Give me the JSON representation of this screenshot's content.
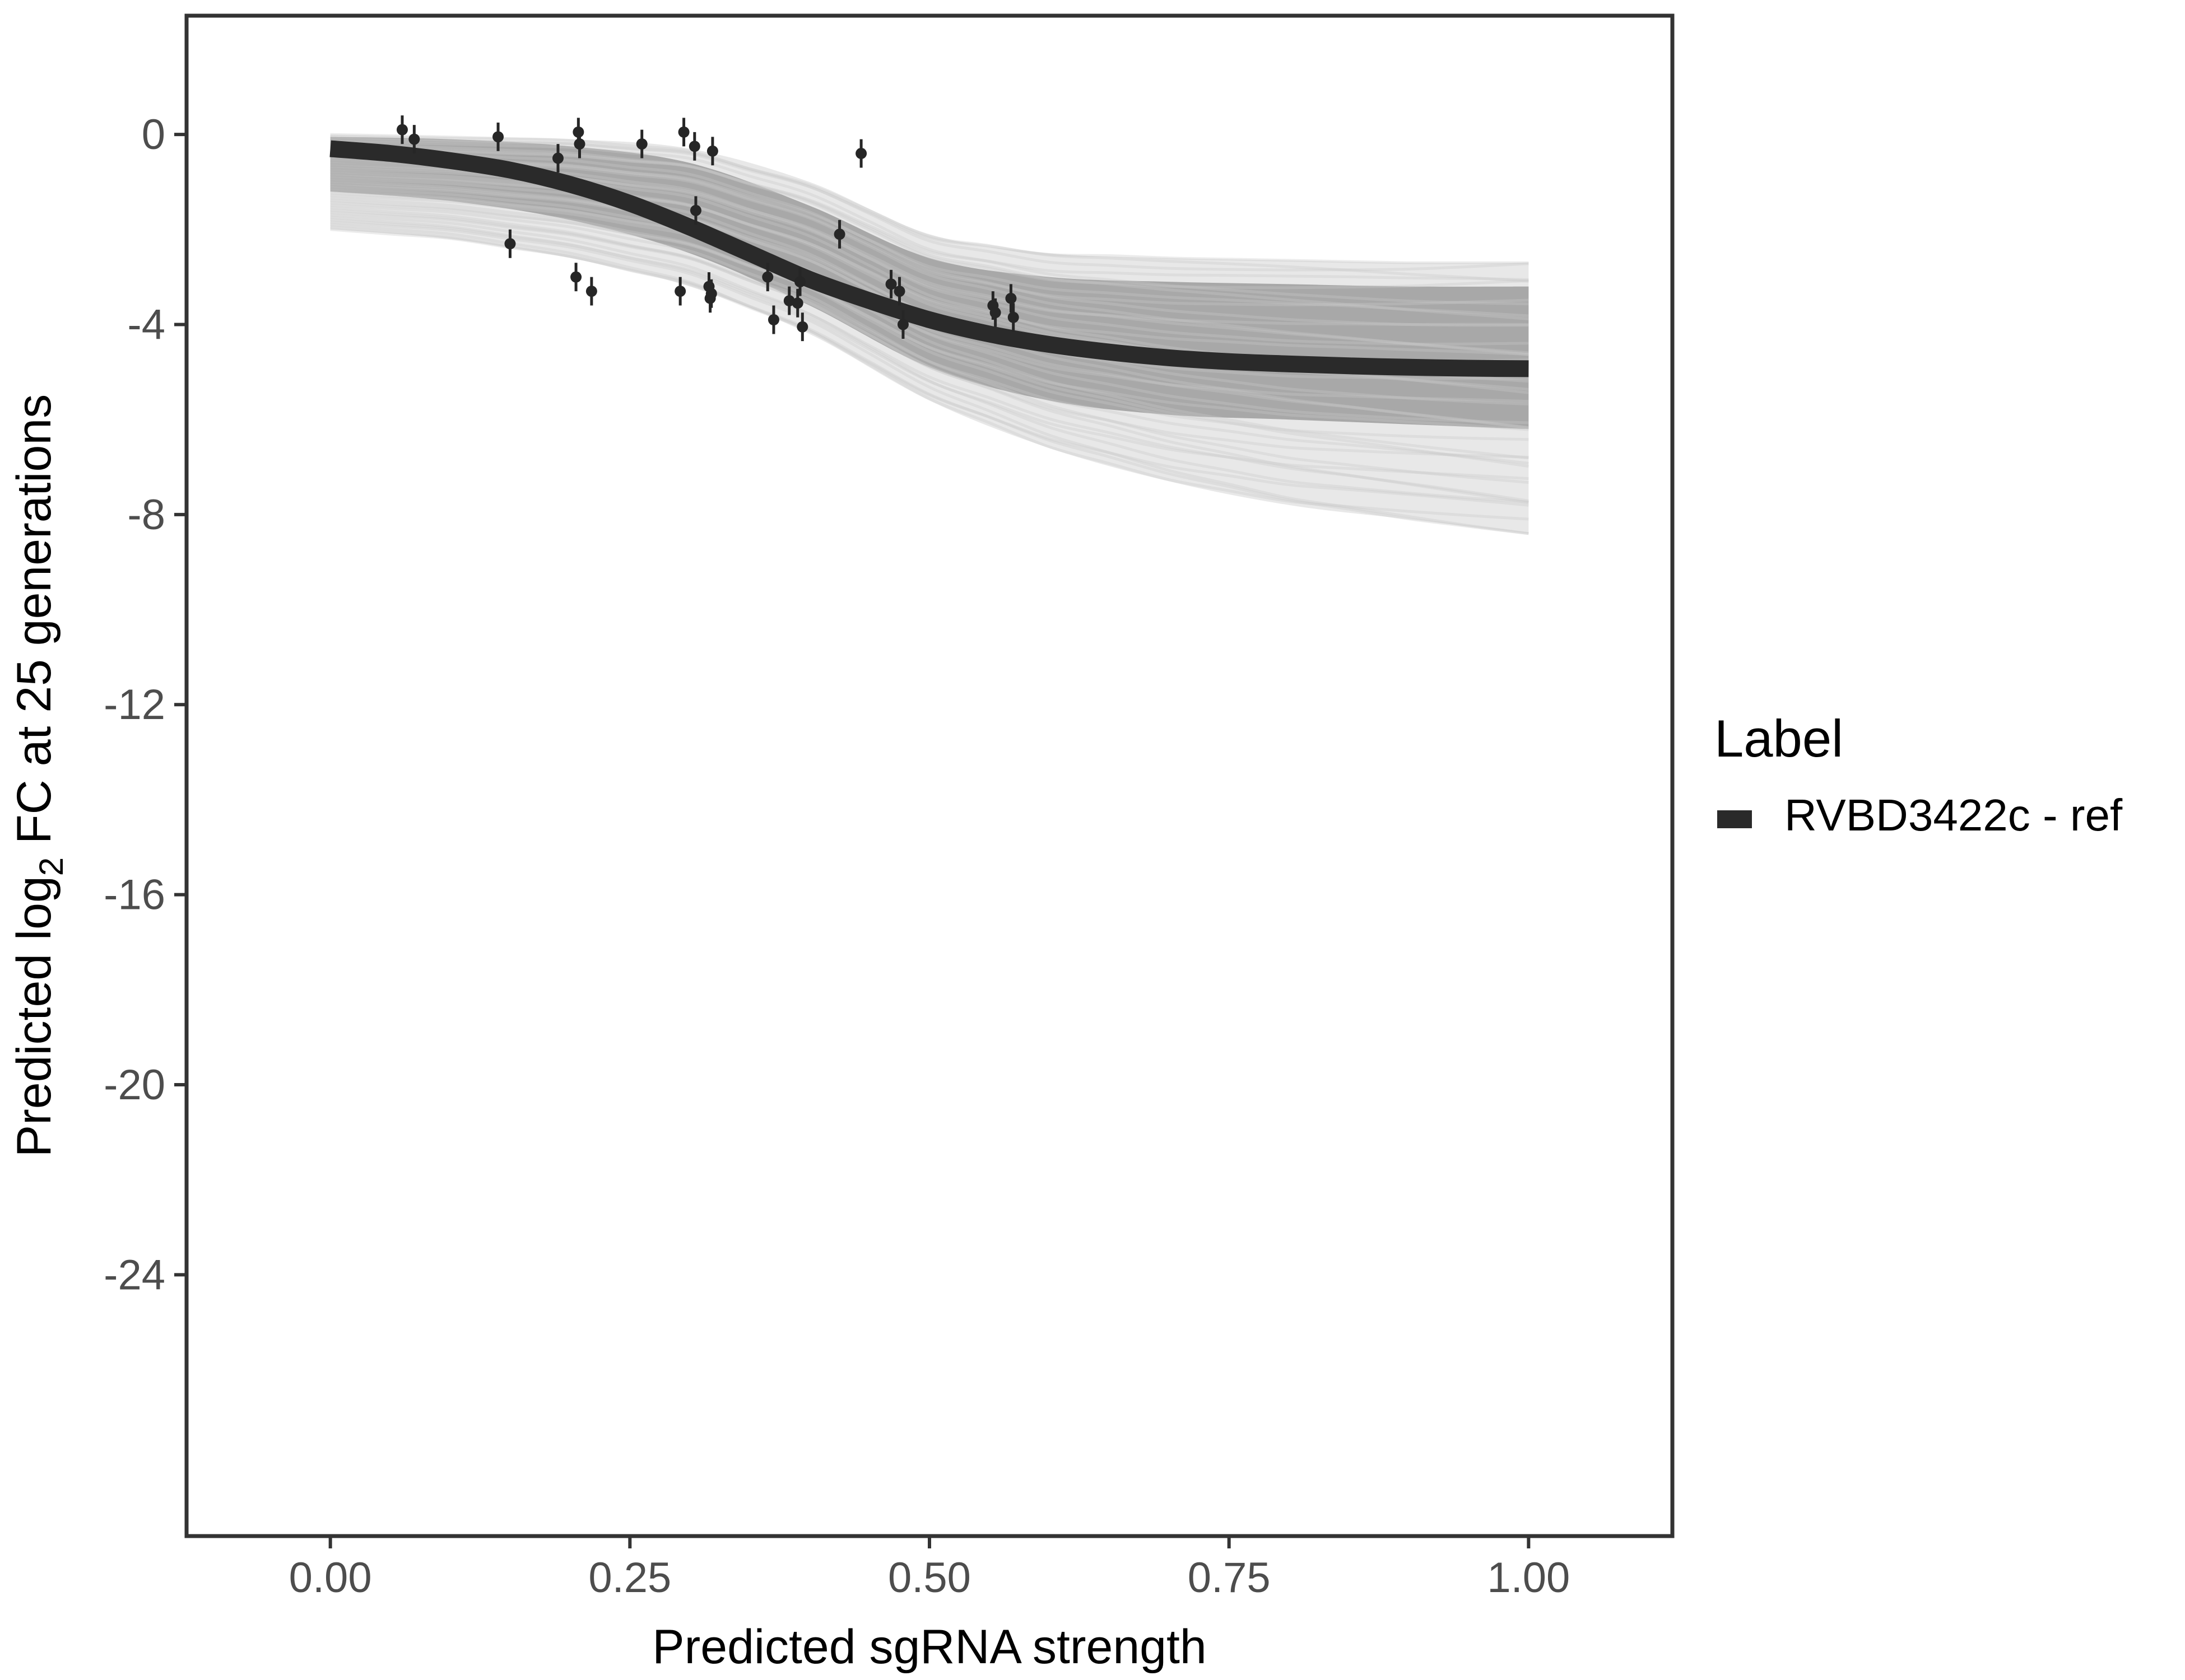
{
  "chart_data": {
    "type": "line",
    "xlabel": "Predicted sgRNA strength",
    "ylabel_prefix": "Predicted  log",
    "ylabel_subscript": "2",
    "ylabel_suffix": " FC at 25 generations",
    "xlim": [
      -0.12,
      1.12
    ],
    "ylim": [
      -29.5,
      2.5
    ],
    "x_ticks": [
      0.0,
      0.25,
      0.5,
      0.75,
      1.0
    ],
    "x_tick_labels": [
      "0.00",
      "0.25",
      "0.50",
      "0.75",
      "1.00"
    ],
    "y_ticks": [
      0,
      -4,
      -8,
      -12,
      -16,
      -20,
      -24
    ],
    "y_tick_labels": [
      "0",
      "-4",
      "-8",
      "-12",
      "-16",
      "-20",
      "-24"
    ],
    "grid": false,
    "legend": {
      "title": "Label",
      "position": "right",
      "entries": [
        "RVBD3422c - ref"
      ]
    },
    "colors": {
      "fit": "#2a2a2a",
      "band": "#a8a8a8",
      "draws": "#c8c8c8",
      "points": "#262626",
      "frame": "#333333"
    },
    "fit_curve": {
      "series_name": "RVBD3422c - ref",
      "x": [
        0.0,
        0.05,
        0.1,
        0.15,
        0.2,
        0.25,
        0.3,
        0.35,
        0.4,
        0.45,
        0.5,
        0.55,
        0.6,
        0.65,
        0.7,
        0.75,
        0.8,
        0.85,
        0.9,
        0.95,
        1.0
      ],
      "y": [
        -0.3,
        -0.4,
        -0.55,
        -0.75,
        -1.05,
        -1.45,
        -1.95,
        -2.5,
        -3.05,
        -3.5,
        -3.9,
        -4.2,
        -4.42,
        -4.58,
        -4.7,
        -4.78,
        -4.83,
        -4.87,
        -4.9,
        -4.92,
        -4.93
      ]
    },
    "posterior_band": {
      "x": [
        0.0,
        0.1,
        0.2,
        0.3,
        0.4,
        0.5,
        0.6,
        0.7,
        0.8,
        0.9,
        1.0
      ],
      "upper": [
        -0.05,
        -0.1,
        -0.25,
        -0.6,
        -1.5,
        -2.6,
        -3.0,
        -3.1,
        -3.15,
        -3.2,
        -3.2
      ],
      "lower": [
        -1.2,
        -1.4,
        -1.8,
        -2.5,
        -3.6,
        -4.9,
        -5.6,
        -5.9,
        -6.0,
        -6.1,
        -6.2
      ],
      "outer_upper": [
        0.0,
        -0.05,
        -0.1,
        -0.3,
        -1.0,
        -2.1,
        -2.5,
        -2.6,
        -2.65,
        -2.7,
        -2.7
      ],
      "outer_lower": [
        -2.0,
        -2.2,
        -2.6,
        -3.2,
        -4.2,
        -5.6,
        -6.6,
        -7.3,
        -7.8,
        -8.1,
        -8.4
      ]
    },
    "points": [
      {
        "x": 0.06,
        "y": 0.1,
        "err": 0.3
      },
      {
        "x": 0.07,
        "y": -0.1,
        "err": 0.3
      },
      {
        "x": 0.14,
        "y": -0.05,
        "err": 0.3
      },
      {
        "x": 0.15,
        "y": -2.3,
        "err": 0.3
      },
      {
        "x": 0.19,
        "y": -0.5,
        "err": 0.3
      },
      {
        "x": 0.205,
        "y": -3.0,
        "err": 0.3
      },
      {
        "x": 0.207,
        "y": 0.05,
        "err": 0.3
      },
      {
        "x": 0.208,
        "y": -0.2,
        "err": 0.3
      },
      {
        "x": 0.218,
        "y": -3.3,
        "err": 0.3
      },
      {
        "x": 0.26,
        "y": -0.2,
        "err": 0.3
      },
      {
        "x": 0.292,
        "y": -3.3,
        "err": 0.3
      },
      {
        "x": 0.295,
        "y": 0.05,
        "err": 0.3
      },
      {
        "x": 0.304,
        "y": -0.25,
        "err": 0.3
      },
      {
        "x": 0.305,
        "y": -1.6,
        "err": 0.3
      },
      {
        "x": 0.316,
        "y": -3.2,
        "err": 0.3
      },
      {
        "x": 0.317,
        "y": -3.45,
        "err": 0.3
      },
      {
        "x": 0.318,
        "y": -3.35,
        "err": 0.3
      },
      {
        "x": 0.319,
        "y": -0.35,
        "err": 0.3
      },
      {
        "x": 0.365,
        "y": -3.0,
        "err": 0.3
      },
      {
        "x": 0.37,
        "y": -3.9,
        "err": 0.3
      },
      {
        "x": 0.383,
        "y": -3.5,
        "err": 0.3
      },
      {
        "x": 0.39,
        "y": -3.55,
        "err": 0.3
      },
      {
        "x": 0.392,
        "y": -3.1,
        "err": 0.3
      },
      {
        "x": 0.394,
        "y": -4.05,
        "err": 0.3
      },
      {
        "x": 0.425,
        "y": -2.1,
        "err": 0.3
      },
      {
        "x": 0.443,
        "y": -0.4,
        "err": 0.3
      },
      {
        "x": 0.468,
        "y": -3.15,
        "err": 0.3
      },
      {
        "x": 0.475,
        "y": -3.3,
        "err": 0.3
      },
      {
        "x": 0.478,
        "y": -4.0,
        "err": 0.3
      },
      {
        "x": 0.553,
        "y": -3.6,
        "err": 0.3
      },
      {
        "x": 0.555,
        "y": -3.75,
        "err": 0.3
      },
      {
        "x": 0.568,
        "y": -3.45,
        "err": 0.3
      },
      {
        "x": 0.57,
        "y": -3.85,
        "err": 0.3
      }
    ]
  }
}
